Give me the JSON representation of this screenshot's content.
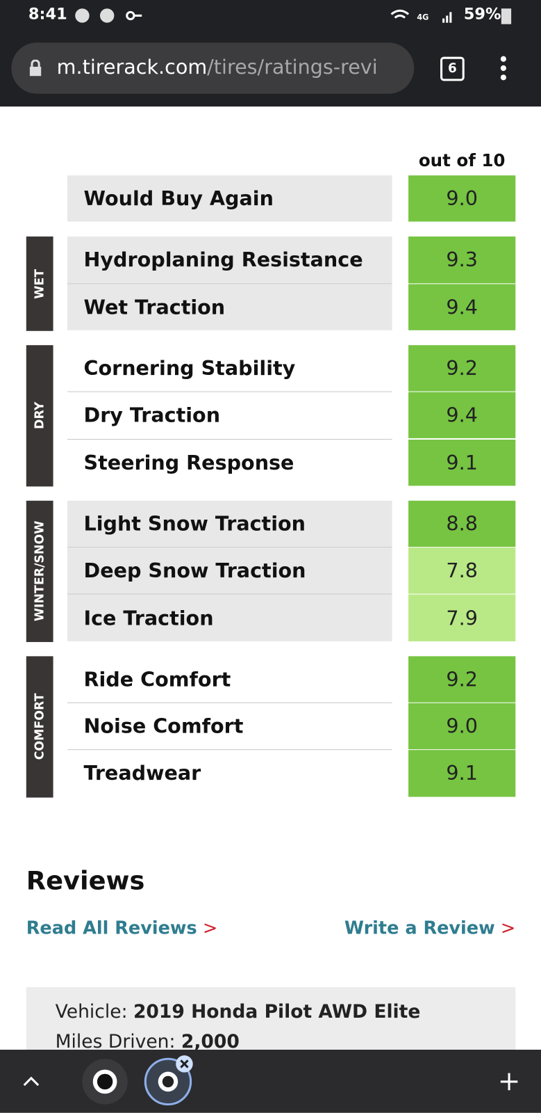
{
  "status_bar": {
    "time": "8:41",
    "battery": "59%"
  },
  "url_bar": {
    "domain": "m.tirerack.com",
    "path": "/tires/ratings-revi",
    "tab_count": "6"
  },
  "ratings": {
    "header": "out of 10",
    "groups": [
      {
        "items": [
          {
            "name": "Would Buy Again",
            "score": "9.0",
            "color": "#76c442"
          }
        ]
      },
      {
        "label": "WET",
        "items": [
          {
            "name": "Hydroplaning Resistance",
            "score": "9.3",
            "color": "#76c442"
          },
          {
            "name": "Wet Traction",
            "score": "9.4",
            "color": "#76c442"
          }
        ]
      },
      {
        "label": "DRY",
        "items": [
          {
            "name": "Cornering Stability",
            "score": "9.2",
            "color": "#76c442"
          },
          {
            "name": "Dry Traction",
            "score": "9.4",
            "color": "#76c442"
          },
          {
            "name": "Steering Response",
            "score": "9.1",
            "color": "#76c442"
          }
        ]
      },
      {
        "label": "WINTER/SNOW",
        "items": [
          {
            "name": "Light Snow Traction",
            "score": "8.8",
            "color": "#76c442"
          },
          {
            "name": "Deep Snow Traction",
            "score": "7.8",
            "color": "#b9e986"
          },
          {
            "name": "Ice Traction",
            "score": "7.9",
            "color": "#b9e986"
          }
        ]
      },
      {
        "label": "COMFORT",
        "items": [
          {
            "name": "Ride Comfort",
            "score": "9.2",
            "color": "#76c442"
          },
          {
            "name": "Noise Comfort",
            "score": "9.0",
            "color": "#76c442"
          },
          {
            "name": "Treadwear",
            "score": "9.1",
            "color": "#76c442"
          }
        ]
      }
    ]
  },
  "reviews": {
    "title": "Reviews",
    "read_all": "Read All Reviews",
    "write": "Write a Review",
    "arrow": ">",
    "card": {
      "vehicle_label": "Vehicle:",
      "vehicle": "2019 Honda Pilot AWD Elite",
      "miles_label": "Miles Driven:",
      "miles": "2,000"
    }
  }
}
